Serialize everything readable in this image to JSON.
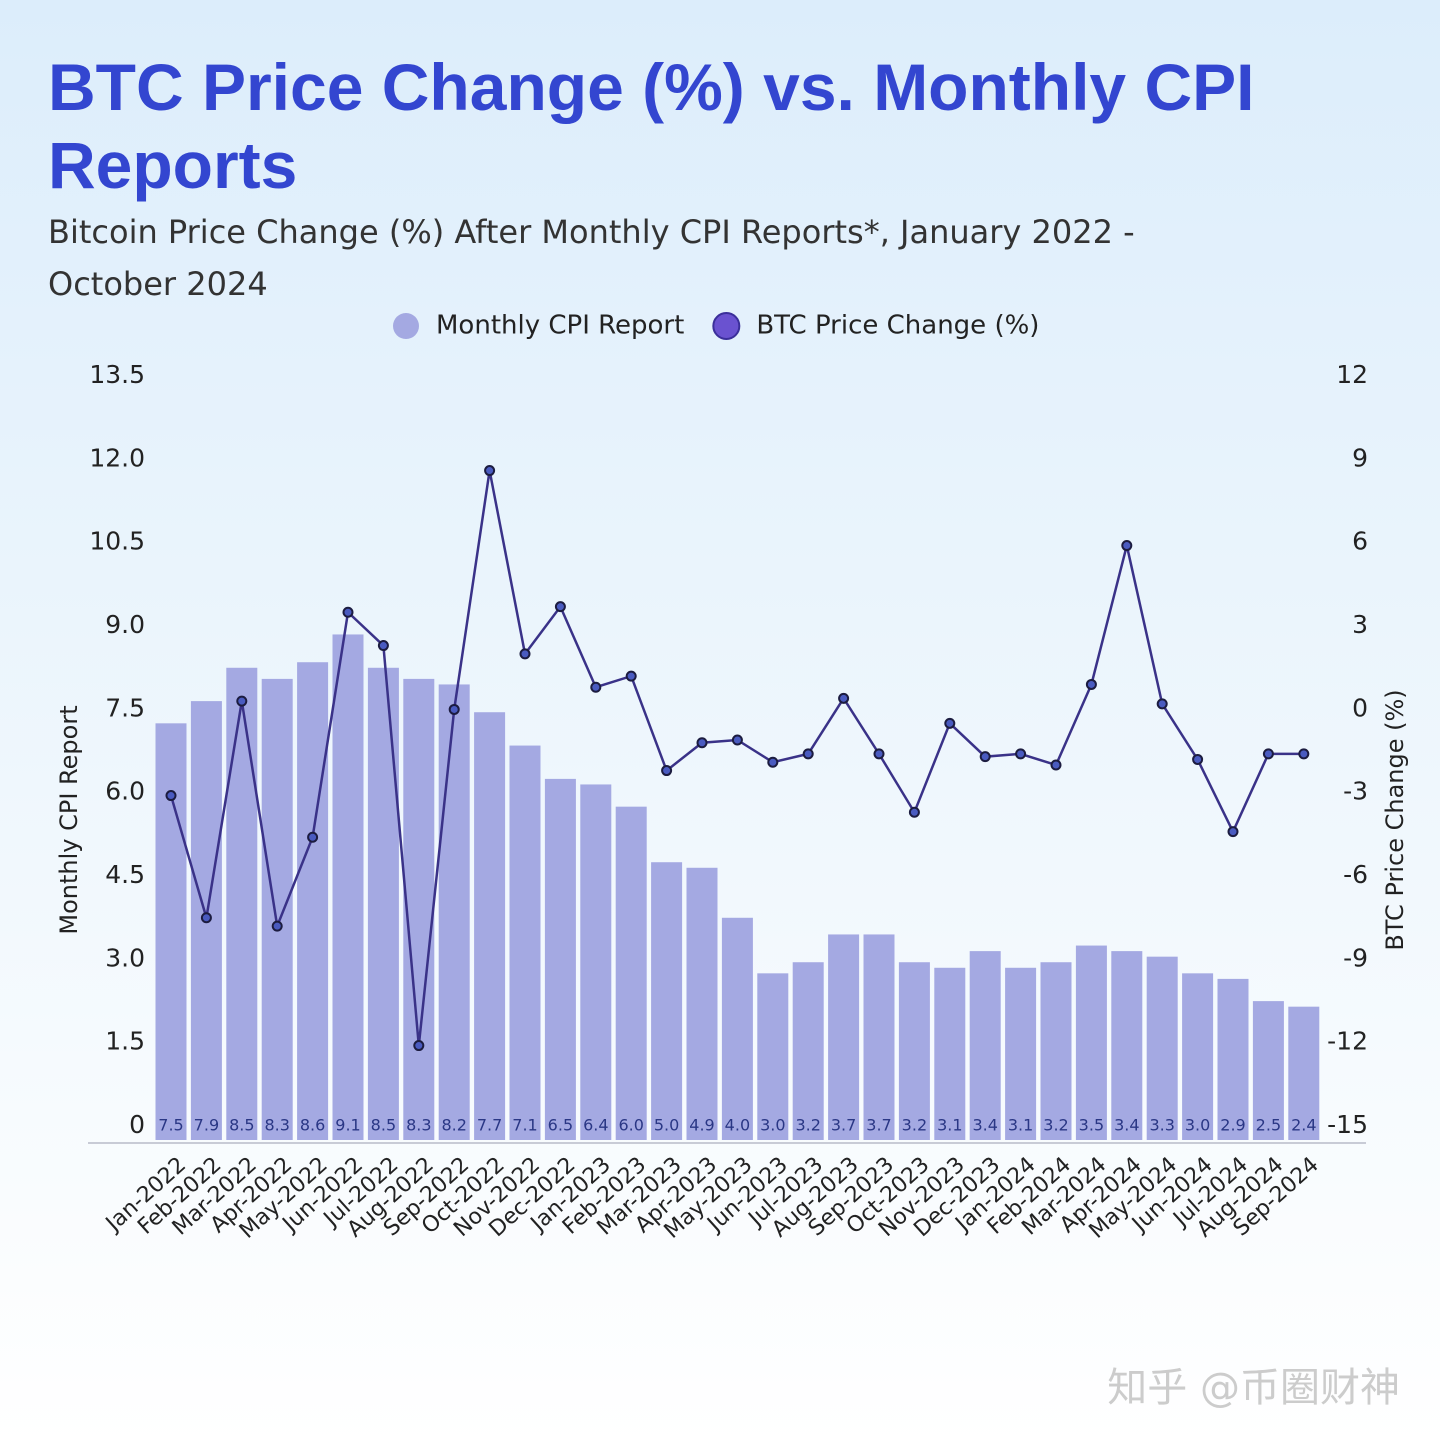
{
  "chart_data": {
    "type": "bar",
    "title": "BTC Price Change (%) vs. Monthly CPI Reports",
    "subtitle": "Bitcoin Price Change (%) After Monthly CPI Reports*, January 2022 - October 2024",
    "watermark": "知乎 @币圈财神",
    "y_label": "Monthly CPI Report",
    "y2_label": "BTC Price Change (%)",
    "categories": [
      "Jan-2022",
      "Feb-2022",
      "Mar-2022",
      "Apr-2022",
      "May-2022",
      "Jun-2022",
      "Jul-2022",
      "Aug-2022",
      "Sep-2022",
      "Oct-2022",
      "Nov-2022",
      "Dec-2022",
      "Jan-2023",
      "Feb-2023",
      "Mar-2023",
      "Apr-2023",
      "May-2023",
      "Jun-2023",
      "Jul-2023",
      "Aug-2023",
      "Sep-2023",
      "Oct-2023",
      "Nov-2023",
      "Dec-2023",
      "Jan-2024",
      "Feb-2024",
      "Mar-2024",
      "Apr-2024",
      "May-2024",
      "Jun-2024",
      "Jul-2024",
      "Aug-2024",
      "Sep-2024"
    ],
    "series": [
      {
        "name": "Monthly CPI Report",
        "type": "bar",
        "color": "#a4a9e2",
        "values": [
          7.5,
          7.9,
          8.5,
          8.3,
          8.6,
          9.1,
          8.5,
          8.3,
          8.2,
          7.7,
          7.1,
          6.5,
          6.4,
          6.0,
          5.0,
          4.9,
          4.0,
          3.0,
          3.2,
          3.7,
          3.7,
          3.2,
          3.1,
          3.4,
          3.1,
          3.2,
          3.5,
          3.4,
          3.3,
          3.0,
          2.9,
          2.5,
          2.4
        ],
        "value_labels": [
          "7.5",
          "7.9",
          "8.5",
          "8.3",
          "8.6",
          "9.1",
          "8.5",
          "8.3",
          "8.2",
          "7.7",
          "7.1",
          "6.5",
          "6.4",
          "6.0",
          "5.0",
          "4.9",
          "4.0",
          "3.0",
          "3.2",
          "3.7",
          "3.7",
          "3.2",
          "3.1",
          "3.4",
          "3.1",
          "3.2",
          "3.5",
          "3.4",
          "3.3",
          "3.0",
          "2.9",
          "2.5",
          "2.4"
        ]
      },
      {
        "name": "BTC Price Change (%)",
        "type": "line",
        "axis": "y2",
        "color": "#3a3288",
        "values": [
          -2.6,
          -7.0,
          0.8,
          -7.3,
          -4.1,
          4.0,
          2.8,
          -11.6,
          0.5,
          9.1,
          2.5,
          4.2,
          1.3,
          1.7,
          -1.7,
          -0.7,
          -0.6,
          -1.4,
          -1.1,
          0.9,
          -1.1,
          -3.2,
          0.0,
          -1.2,
          -1.1,
          -1.5,
          1.4,
          6.4,
          0.7,
          -1.3,
          -3.9,
          -1.1,
          -1.1
        ]
      }
    ],
    "ylim": [
      0,
      13.5
    ],
    "yticks": [
      0,
      1.5,
      {
        "value": 3,
        "label": "3.0"
      },
      4.5,
      {
        "value": 6,
        "label": "6.0"
      },
      7.5,
      {
        "value": 9,
        "label": "9.0"
      },
      10.5,
      {
        "value": 12,
        "label": "12.0"
      },
      13.5
    ],
    "y2lim": [
      -15,
      12
    ],
    "y2ticks": [
      -15,
      -12,
      -9,
      -6,
      -3,
      0,
      3,
      6,
      9,
      12
    ]
  }
}
